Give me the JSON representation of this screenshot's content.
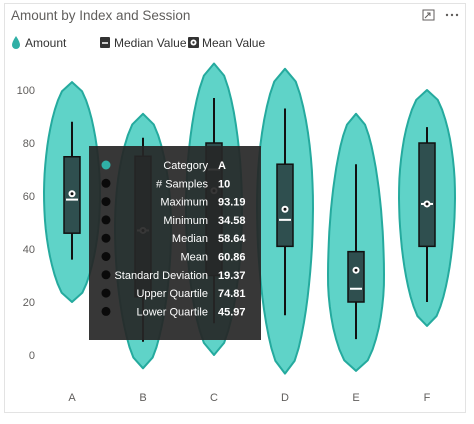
{
  "chart_data": {
    "type": "violin",
    "title": "Amount by Index and Session",
    "legend": {
      "placement": "top-left",
      "items": [
        {
          "name": "Amount",
          "icon": "droplet-icon",
          "color": "#30b0a6"
        },
        {
          "name": "Median Value",
          "icon": "median-box-icon",
          "color": "#333333"
        },
        {
          "name": "Mean Value",
          "icon": "mean-circle-icon",
          "color": "#333333"
        }
      ]
    },
    "categories": [
      "A",
      "B",
      "C",
      "D",
      "E",
      "F"
    ],
    "yticks": [
      0,
      20,
      40,
      60,
      80,
      100
    ],
    "ylim": [
      -5,
      108
    ],
    "grid": false,
    "colors": {
      "violin_fill": "#5fd3c8",
      "violin_stroke": "#25aa9e",
      "box": "#2f4f4f"
    },
    "series": [
      {
        "category": "A",
        "violin_min": 20,
        "violin_max": 103,
        "whisker_low": 36,
        "whisker_high": 88,
        "q1": 45.97,
        "q3": 74.81,
        "median": 58.64,
        "mean": 60.86
      },
      {
        "category": "B",
        "violin_min": -5,
        "violin_max": 91,
        "whisker_low": 5,
        "whisker_high": 82,
        "q1": 22,
        "q3": 75,
        "median": 47,
        "mean": 47
      },
      {
        "category": "C",
        "violin_min": 0,
        "violin_max": 110,
        "whisker_low": 12,
        "whisker_high": 97,
        "q1": 30,
        "q3": 80,
        "median": 70,
        "mean": 62
      },
      {
        "category": "D",
        "violin_min": -7,
        "violin_max": 108,
        "whisker_low": 15,
        "whisker_high": 93,
        "q1": 41,
        "q3": 72,
        "median": 51,
        "mean": 55
      },
      {
        "category": "E",
        "violin_min": -6,
        "violin_max": 91,
        "whisker_low": 6,
        "whisker_high": 72,
        "q1": 20,
        "q3": 39,
        "median": 25,
        "mean": 32
      },
      {
        "category": "F",
        "violin_min": 11,
        "violin_max": 100,
        "whisker_low": 20,
        "whisker_high": 86,
        "q1": 41,
        "q3": 80,
        "median": 57,
        "mean": 57
      }
    ],
    "tooltip": {
      "rows": [
        {
          "label": "Category",
          "value": "A"
        },
        {
          "label": "# Samples",
          "value": "10"
        },
        {
          "label": "Maximum",
          "value": "93.19"
        },
        {
          "label": "Minimum",
          "value": "34.58"
        },
        {
          "label": "Median",
          "value": "58.64"
        },
        {
          "label": "Mean",
          "value": "60.86"
        },
        {
          "label": "Standard Deviation",
          "value": "19.37"
        },
        {
          "label": "Upper Quartile",
          "value": "74.81"
        },
        {
          "label": "Lower Quartile",
          "value": "45.97"
        }
      ]
    }
  },
  "header_icons": [
    {
      "name": "focus-mode-icon"
    },
    {
      "name": "more-options-icon"
    }
  ]
}
